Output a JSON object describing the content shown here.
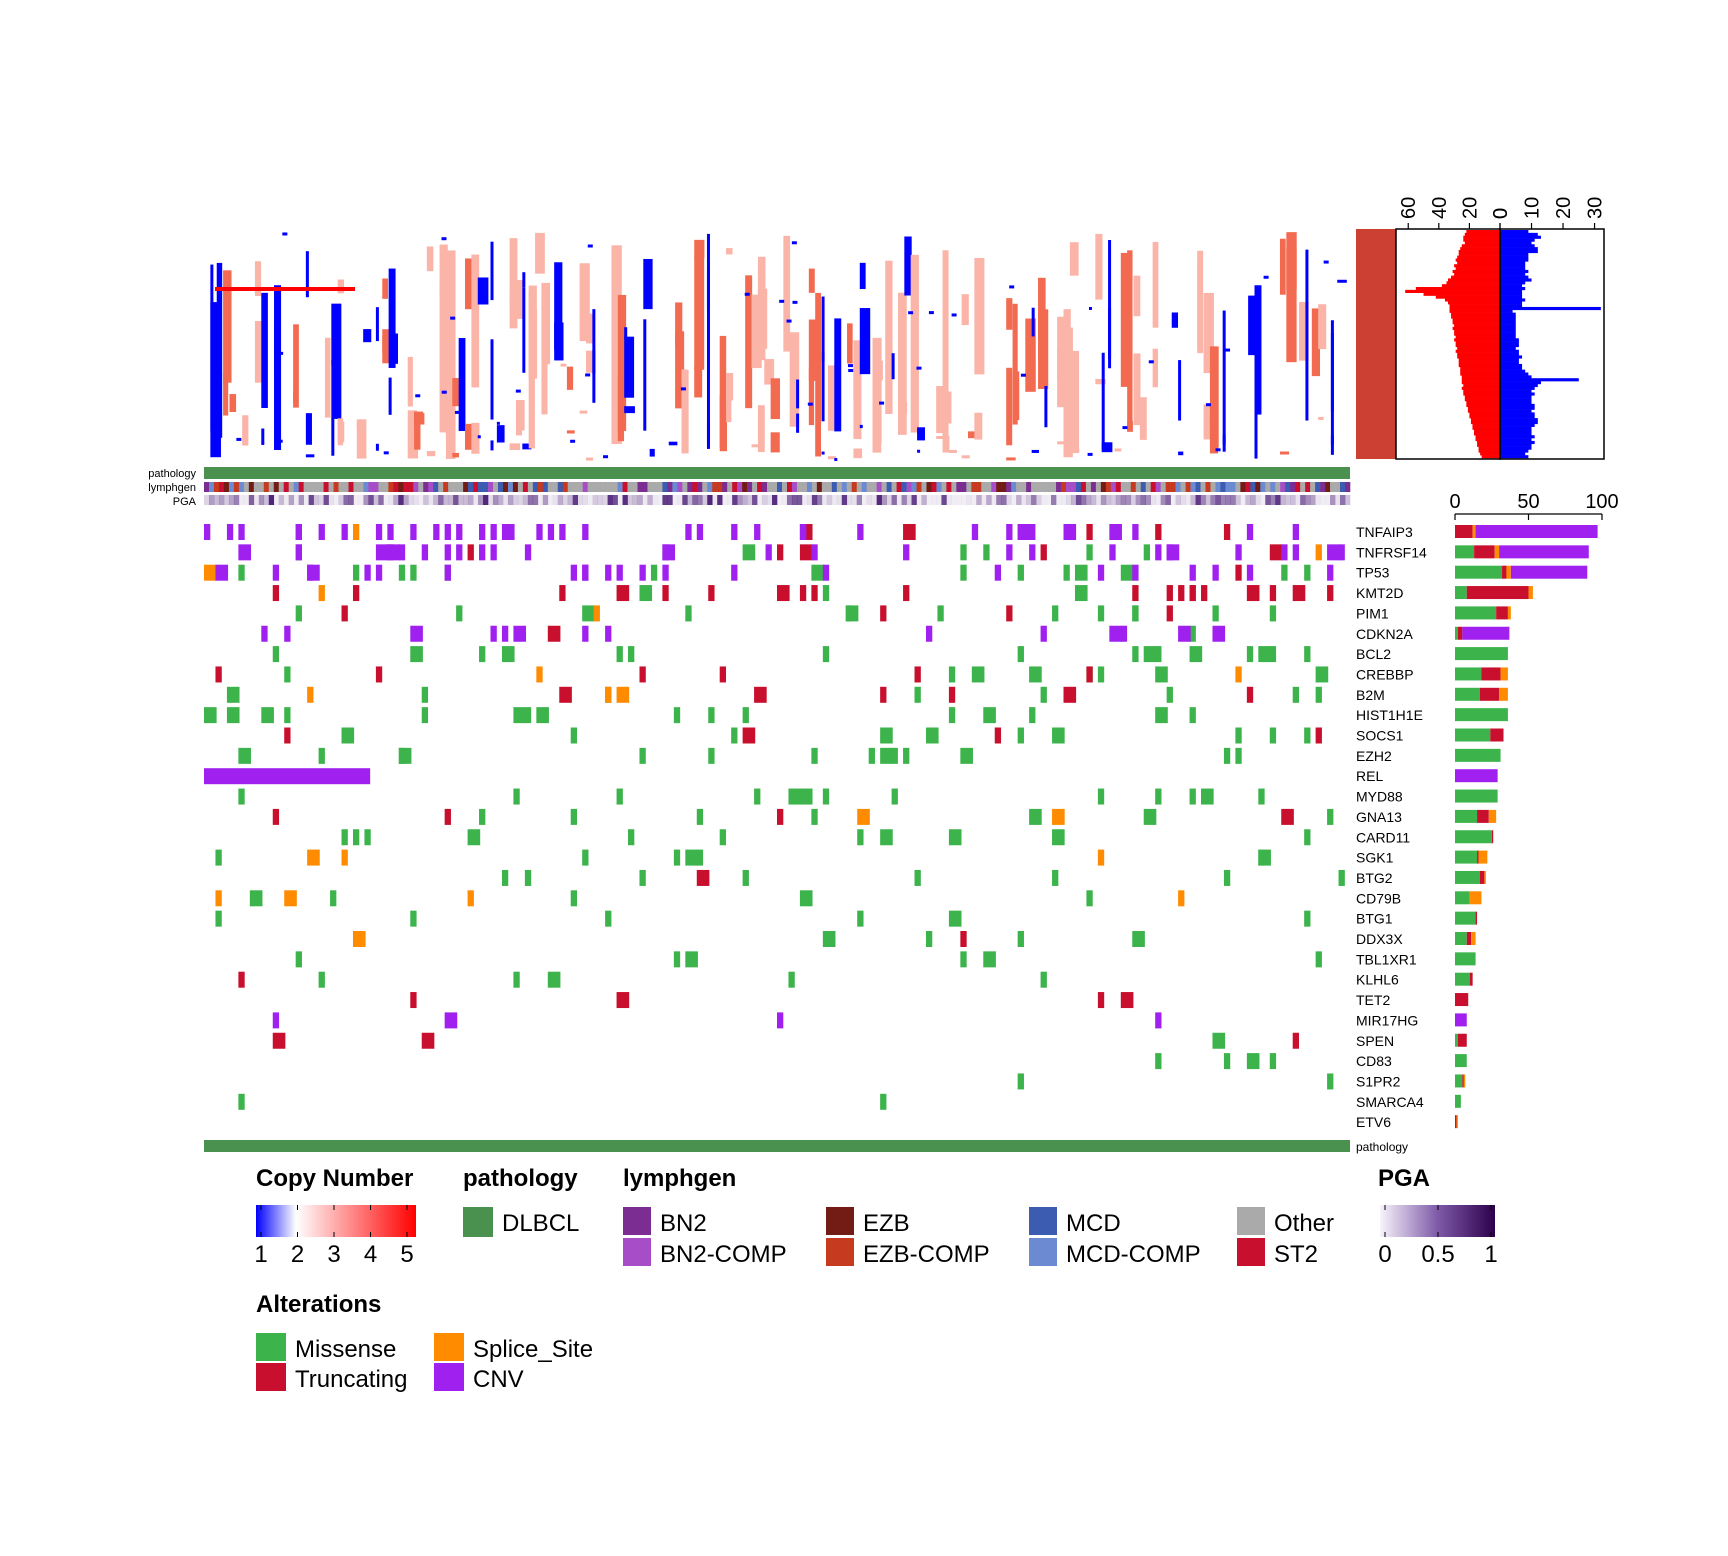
{
  "chart_data": [
    {
      "type": "heatmap",
      "panel": "oncoprint",
      "n_samples": 100,
      "genes": [
        "TNFAIP3",
        "TNFRSF14",
        "TP53",
        "KMT2D",
        "PIM1",
        "CDKN2A",
        "BCL2",
        "CREBBP",
        "B2M",
        "HIST1H1E",
        "SOCS1",
        "EZH2",
        "REL",
        "MYD88",
        "GNA13",
        "CARD11",
        "SGK1",
        "BTG2",
        "CD79B",
        "BTG1",
        "DDX3X",
        "TBL1XR1",
        "KLHL6",
        "TET2",
        "MIR17HG",
        "SPEN",
        "CD83",
        "S1PR2",
        "SMARCA4",
        "ETV6"
      ],
      "gene_totals": [
        97,
        91,
        90,
        53,
        38,
        37,
        36,
        36,
        36,
        36,
        33,
        31,
        29,
        29,
        28,
        26,
        22,
        21,
        18,
        15,
        14,
        14,
        12,
        9,
        8,
        8,
        8,
        7,
        4,
        2
      ],
      "gene_breakdown": {
        "Missense": [
          0,
          13,
          32,
          8,
          28,
          2,
          36,
          18,
          17,
          36,
          24,
          31,
          0,
          29,
          15,
          25,
          15,
          17,
          10,
          14,
          8,
          14,
          10,
          0,
          0,
          2,
          8,
          5,
          4,
          0
        ],
        "Truncating": [
          12,
          14,
          3,
          42,
          8,
          3,
          0,
          13,
          13,
          0,
          9,
          0,
          0,
          0,
          8,
          1,
          1,
          3,
          0,
          1,
          3,
          0,
          2,
          9,
          0,
          6,
          0,
          1,
          0,
          1
        ],
        "Splice_Site": [
          2,
          3,
          3,
          3,
          2,
          0,
          0,
          5,
          6,
          0,
          0,
          0,
          0,
          0,
          5,
          0,
          6,
          1,
          8,
          0,
          3,
          0,
          0,
          0,
          0,
          0,
          0,
          1,
          0,
          1
        ],
        "CNV": [
          83,
          61,
          52,
          0,
          0,
          32,
          0,
          0,
          0,
          0,
          0,
          0,
          29,
          0,
          0,
          0,
          0,
          0,
          0,
          0,
          0,
          0,
          0,
          0,
          8,
          0,
          0,
          0,
          0,
          0
        ]
      },
      "annotation_rows": [
        "pathology",
        "lymphgen",
        "PGA"
      ],
      "bottom_annotation": "pathology",
      "alteration_colors": {
        "Missense": "#3cb44b",
        "Truncating": "#c8102e",
        "Splice_Site": "#ff8c00",
        "CNV": "#a020f0"
      }
    },
    {
      "type": "bar",
      "panel": "alteration-frequency",
      "xticks": [
        "0",
        "50",
        "100"
      ],
      "xlim": [
        0,
        100
      ],
      "stacked": true
    },
    {
      "type": "heatmap",
      "panel": "copy-number",
      "scale": [
        1,
        5
      ],
      "neutral": 2
    },
    {
      "type": "bar",
      "panel": "copy-number-summary",
      "orientation": "horizontal",
      "gain_ticks": [
        "60",
        "40",
        "20",
        "0"
      ],
      "loss_ticks": [
        "0",
        "10",
        "20",
        "30"
      ],
      "gain_xlim": [
        0,
        68
      ],
      "loss_xlim": [
        0,
        33
      ],
      "gain_values": [
        22,
        23,
        24,
        24,
        23,
        25,
        26,
        27,
        27,
        28,
        29,
        28,
        30,
        29,
        31,
        30,
        32,
        34,
        35,
        38,
        55,
        62,
        50,
        42,
        36,
        34,
        33,
        33,
        33,
        32,
        32,
        31,
        31,
        30,
        31,
        30,
        30,
        29,
        30,
        29,
        29,
        28,
        29,
        28,
        28,
        27,
        27,
        27,
        26,
        26,
        26,
        25,
        25,
        25,
        24,
        25,
        24,
        24,
        23,
        23,
        22,
        22,
        21,
        21,
        20,
        20,
        19,
        19,
        18,
        18,
        17,
        17,
        16,
        16,
        15,
        15,
        14,
        14,
        13,
        12
      ],
      "loss_values": [
        9,
        12,
        13,
        11,
        10,
        11,
        12,
        12,
        9,
        9,
        9,
        8,
        8,
        8,
        9,
        8,
        9,
        10,
        8,
        7,
        8,
        7,
        7,
        7,
        8,
        7,
        7,
        32,
        4,
        5,
        5,
        5,
        5,
        5,
        5,
        5,
        5,
        5,
        6,
        6,
        6,
        5,
        6,
        6,
        7,
        6,
        6,
        7,
        7,
        8,
        9,
        10,
        25,
        13,
        12,
        11,
        10,
        11,
        10,
        10,
        10,
        11,
        11,
        10,
        11,
        11,
        12,
        12,
        11,
        10,
        10,
        10,
        11,
        10,
        11,
        10,
        10,
        9,
        8,
        9
      ]
    }
  ],
  "gene_labels": [
    "TNFAIP3",
    "TNFRSF14",
    "TP53",
    "KMT2D",
    "PIM1",
    "CDKN2A",
    "BCL2",
    "CREBBP",
    "B2M",
    "HIST1H1E",
    "SOCS1",
    "EZH2",
    "REL",
    "MYD88",
    "GNA13",
    "CARD11",
    "SGK1",
    "BTG2",
    "CD79B",
    "BTG1",
    "DDX3X",
    "TBL1XR1",
    "KLHL6",
    "TET2",
    "MIR17HG",
    "SPEN",
    "CD83",
    "S1PR2",
    "SMARCA4",
    "ETV6"
  ],
  "annotation_labels": {
    "pathology": "pathology",
    "lymphgen": "lymphgen",
    "pga": "PGA",
    "pathology_bottom": "pathology"
  },
  "legend": {
    "copy_number": {
      "title": "Copy Number",
      "ticks": [
        "1",
        "2",
        "3",
        "4",
        "5"
      ],
      "colors": [
        "#0000ff",
        "#ffffff",
        "#ff0000"
      ]
    },
    "pathology": {
      "title": "pathology",
      "items": [
        {
          "label": "DLBCL",
          "color": "#4a9150"
        }
      ]
    },
    "lymphgen": {
      "title": "lymphgen",
      "items": [
        {
          "label": "BN2",
          "color": "#7b2d91"
        },
        {
          "label": "BN2-COMP",
          "color": "#a64dc7"
        },
        {
          "label": "EZB",
          "color": "#721c15"
        },
        {
          "label": "EZB-COMP",
          "color": "#c63b1f"
        },
        {
          "label": "MCD",
          "color": "#3b5cb0"
        },
        {
          "label": "MCD-COMP",
          "color": "#6b8ad1"
        },
        {
          "label": "Other",
          "color": "#aaaaaa"
        },
        {
          "label": "ST2",
          "color": "#c8102e"
        }
      ]
    },
    "pga": {
      "title": "PGA",
      "ticks": [
        "0",
        "0.5",
        "1"
      ],
      "colors": [
        "#f8f4fb",
        "#7e5aa8",
        "#2d004b"
      ]
    },
    "alterations": {
      "title": "Alterations",
      "items": [
        {
          "label": "Missense",
          "color": "#3cb44b"
        },
        {
          "label": "Splice_Site",
          "color": "#ff8c00"
        },
        {
          "label": "Truncating",
          "color": "#c8102e"
        },
        {
          "label": "CNV",
          "color": "#a020f0"
        }
      ]
    }
  },
  "colors": {
    "pathology": "#4a9150",
    "cnv_gain_bar": "#ff0000",
    "cnv_loss_bar": "#0000ff",
    "cnv_side_block": "#cc4033"
  }
}
